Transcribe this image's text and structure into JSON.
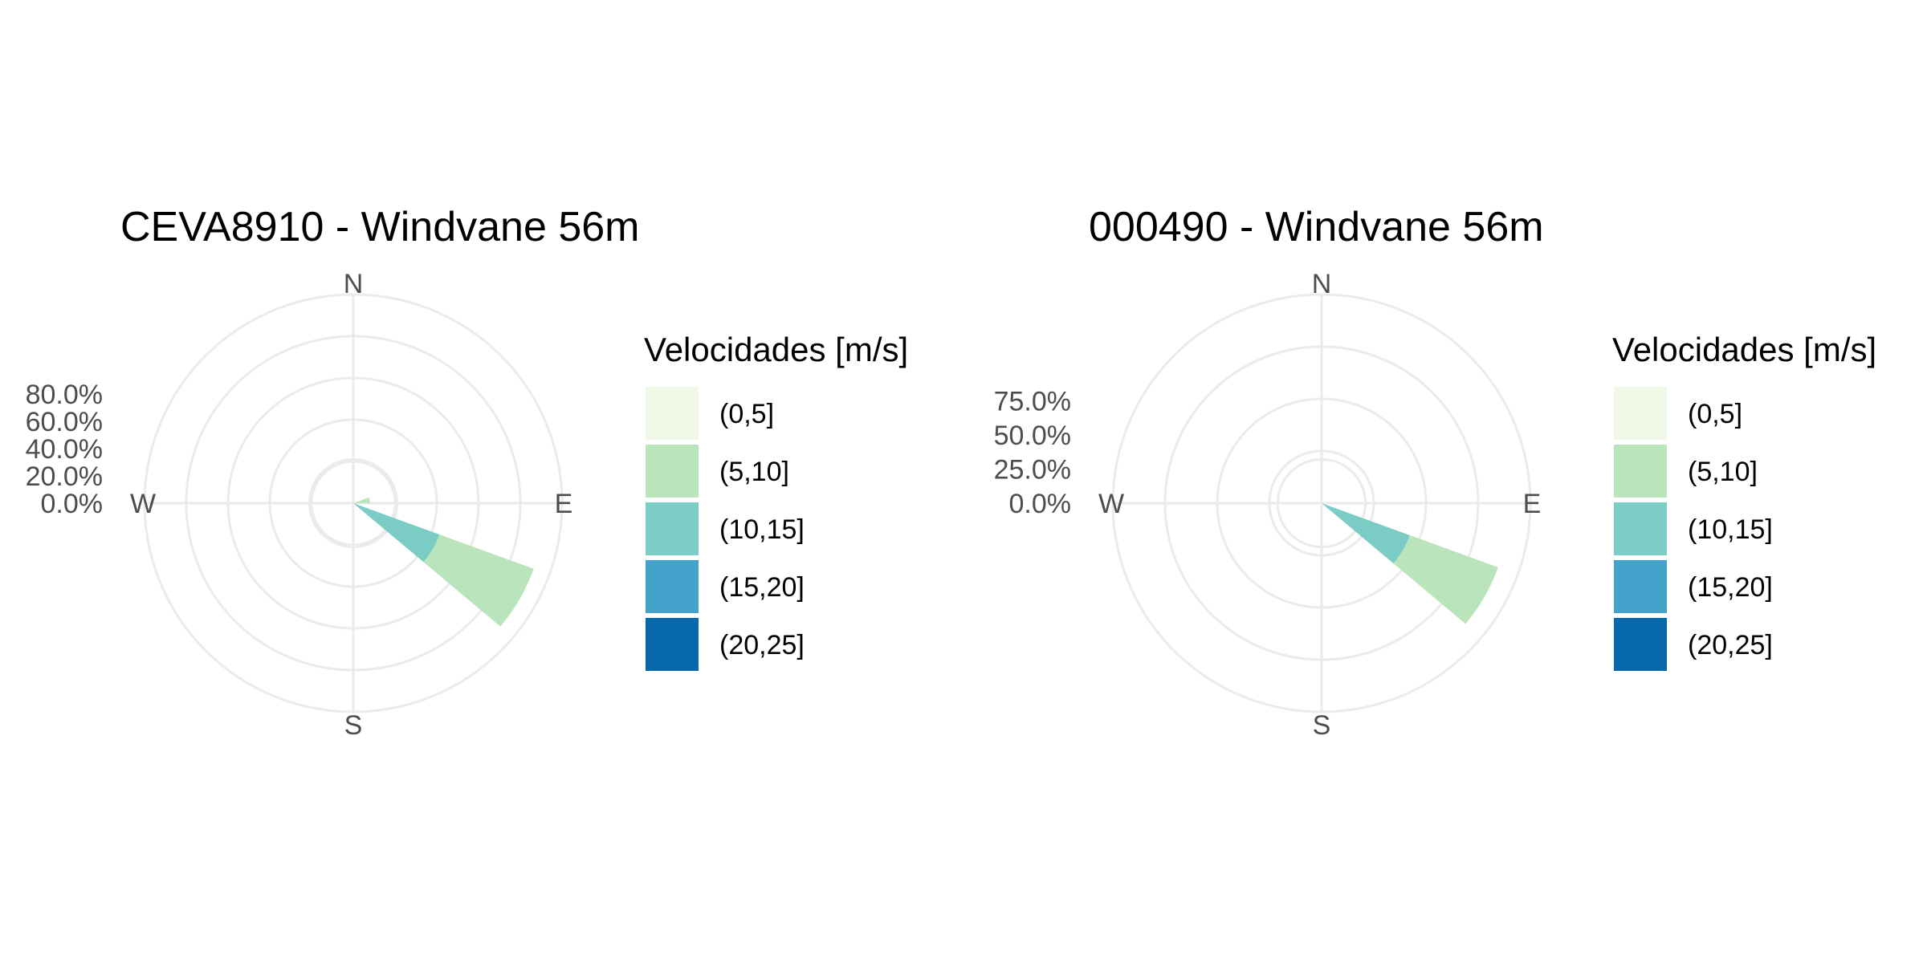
{
  "chart_data": [
    {
      "type": "wind-rose",
      "title": "CEVA8910 - Windvane 56m",
      "compass_labels": [
        "N",
        "E",
        "S",
        "W"
      ],
      "radial_ticks": [
        "0.0%",
        "20.0%",
        "40.0%",
        "60.0%",
        "80.0%"
      ],
      "radial_tick_values": [
        0,
        20,
        40,
        60,
        80
      ],
      "radial_max": 100,
      "legend": {
        "title": "Velocidades [m/s]",
        "placement": "right",
        "entries": [
          {
            "label": "(0,5]",
            "color": "#f0f9e8"
          },
          {
            "label": "(5,10]",
            "color": "#bae4bc"
          },
          {
            "label": "(10,15]",
            "color": "#7bccc4"
          },
          {
            "label": "(15,20]",
            "color": "#43a2ca"
          },
          {
            "label": "(20,25]",
            "color": "#0868ac"
          }
        ]
      },
      "sectors": [
        {
          "direction_deg": 80,
          "stacks": [
            {
              "bin": "(5,10]",
              "cumulative": 8
            }
          ]
        },
        {
          "direction_deg": 120,
          "stacks": [
            {
              "bin": "(10,15]",
              "cumulative": 44
            },
            {
              "bin": "(5,10]",
              "cumulative": 92
            }
          ]
        }
      ],
      "sector_width_deg": 20,
      "grid": true
    },
    {
      "type": "wind-rose",
      "title": "000490 - Windvane 56m",
      "compass_labels": [
        "N",
        "E",
        "S",
        "W"
      ],
      "radial_ticks": [
        "0.0%",
        "25.0%",
        "50.0%",
        "75.0%"
      ],
      "radial_tick_values": [
        0,
        25,
        50,
        75
      ],
      "radial_max": 100,
      "legend": {
        "title": "Velocidades [m/s]",
        "placement": "right",
        "entries": [
          {
            "label": "(0,5]",
            "color": "#f0f9e8"
          },
          {
            "label": "(5,10]",
            "color": "#bae4bc"
          },
          {
            "label": "(10,15]",
            "color": "#7bccc4"
          },
          {
            "label": "(15,20]",
            "color": "#43a2ca"
          },
          {
            "label": "(20,25]",
            "color": "#0868ac"
          }
        ]
      },
      "sectors": [
        {
          "direction_deg": 120,
          "stacks": [
            {
              "bin": "(10,15]",
              "cumulative": 45
            },
            {
              "bin": "(5,10]",
              "cumulative": 90
            }
          ]
        }
      ],
      "sector_width_deg": 20,
      "grid": true
    }
  ]
}
